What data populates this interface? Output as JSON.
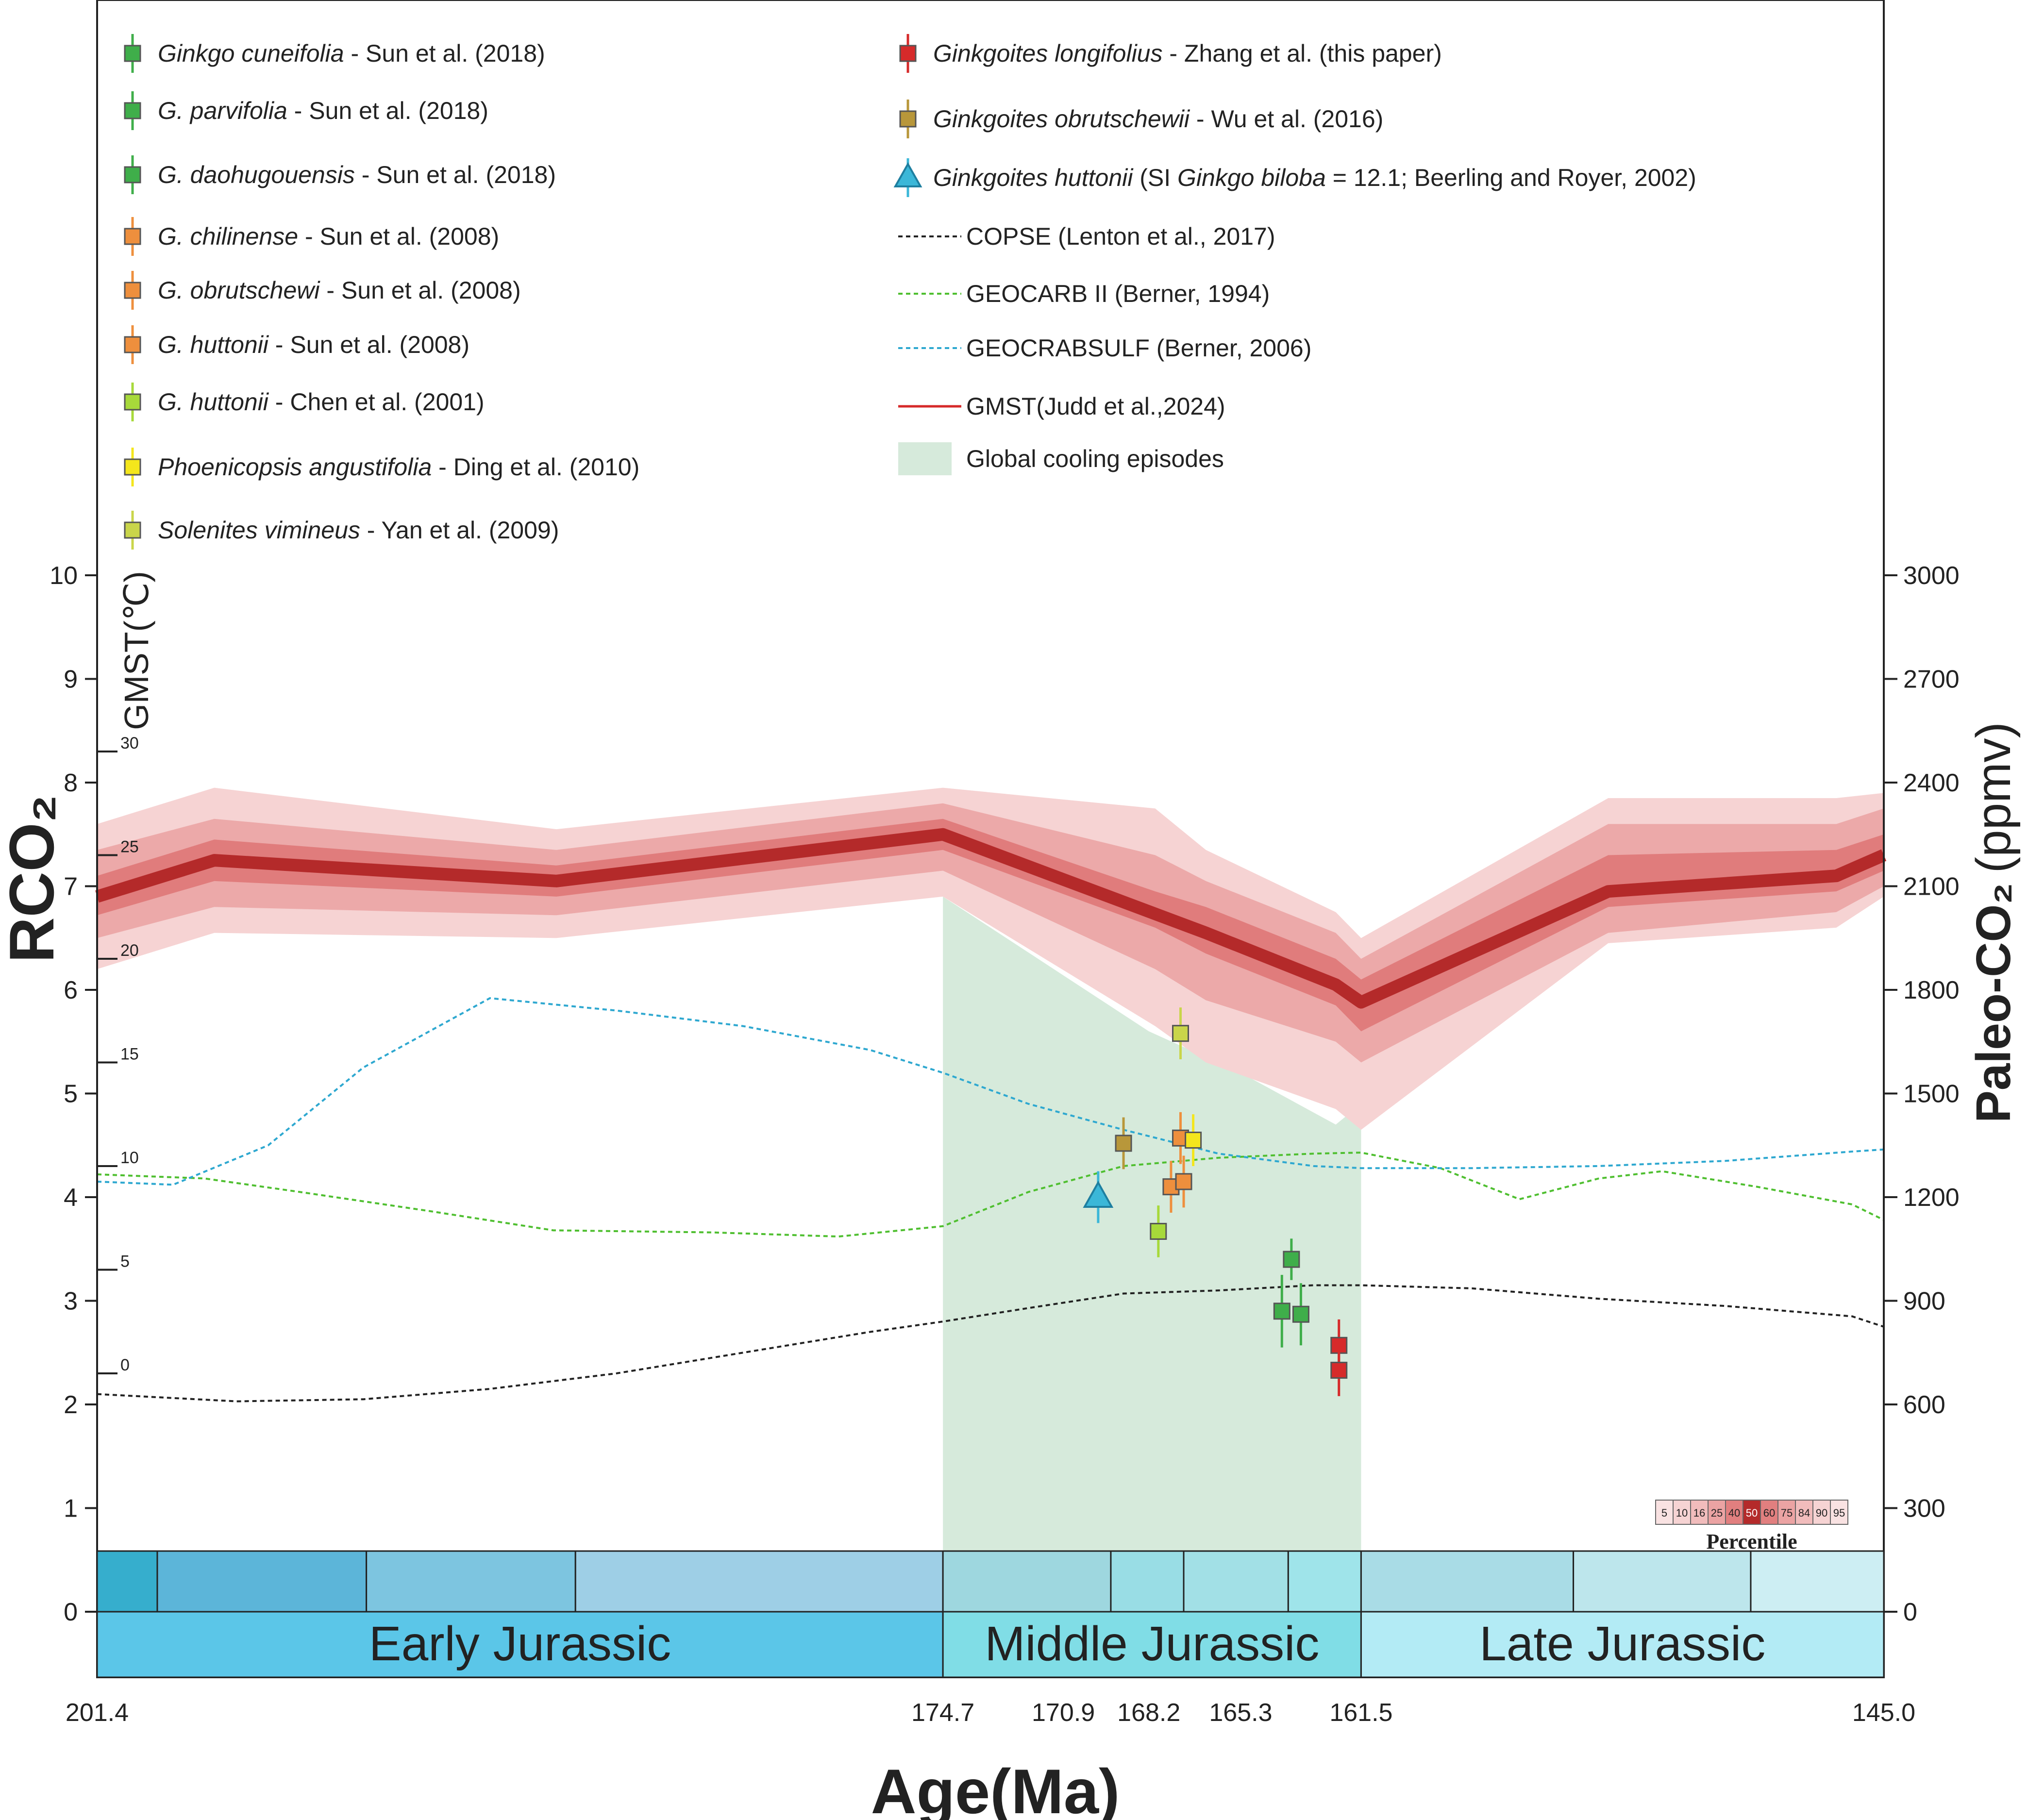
{
  "chart_data": {
    "type": "line",
    "xlabel": "Age(Ma)",
    "ylabel_left": "RCO₂",
    "ylabel_right": "Paleo-CO₂ (ppmv)",
    "ylabel_right_bold": "Paleo-CO₂",
    "ylabel_right_unit": "(ppmv)",
    "ylabel_gmst": "GMST(℃)",
    "xlim": [
      201.4,
      145.0
    ],
    "ylim_left": [
      0,
      10
    ],
    "ylim_right": [
      0,
      3000
    ],
    "x_ticks": [
      "201.4",
      "174.7",
      "170.9",
      "168.2",
      "165.3",
      "161.5",
      "145.0"
    ],
    "x_tick_values": [
      201.4,
      174.7,
      170.9,
      168.2,
      165.3,
      161.5,
      145.0
    ],
    "left_ticks": [
      "0",
      "1",
      "2",
      "3",
      "4",
      "5",
      "6",
      "7",
      "8",
      "9",
      "10"
    ],
    "right_ticks": [
      "0",
      "300",
      "600",
      "900",
      "1200",
      "1500",
      "1800",
      "2100",
      "2400",
      "2700",
      "3000"
    ],
    "gmst_ticks": [
      "0",
      "5",
      "10",
      "15",
      "20",
      "25",
      "30"
    ],
    "gmst_rco2_positions": [
      2.3,
      3.3,
      4.3,
      5.3,
      6.3,
      7.3,
      8.3
    ],
    "cooling_episode": {
      "x_start": 174.7,
      "x_end": 161.5,
      "y_top_start": 6.9,
      "label": "Global cooling episodes",
      "color": "#d6eadb"
    },
    "series": [
      {
        "name": "COPSE (Lenton et al., 2017)",
        "style": "dotted",
        "color": "#222222",
        "x": [
          201.4,
          197,
          193,
          189,
          185,
          181,
          177,
          174.7,
          172,
          169,
          166,
          163,
          161.5,
          158,
          154,
          150,
          146,
          145
        ],
        "y": [
          2.1,
          2.03,
          2.05,
          2.15,
          2.3,
          2.5,
          2.7,
          2.8,
          2.93,
          3.07,
          3.1,
          3.15,
          3.15,
          3.12,
          3.02,
          2.95,
          2.85,
          2.75
        ]
      },
      {
        "name": "GEOCARB II (Berner, 1994)",
        "style": "dotted",
        "color": "#4fbf30",
        "x": [
          201.4,
          198,
          195,
          191,
          187,
          182,
          178,
          174.7,
          172,
          169,
          166,
          163,
          161.5,
          159,
          156.5,
          154,
          152,
          149,
          146,
          145
        ],
        "y": [
          4.22,
          4.18,
          4.05,
          3.87,
          3.68,
          3.66,
          3.62,
          3.72,
          4.05,
          4.3,
          4.38,
          4.42,
          4.43,
          4.28,
          3.98,
          4.18,
          4.25,
          4.1,
          3.93,
          3.78
        ]
      },
      {
        "name": "GEOCRABSULF (Berner, 2006)",
        "style": "dotted",
        "color": "#2ea8d0",
        "x": [
          201.4,
          199,
          196,
          193,
          189,
          185,
          181,
          177,
          174.7,
          172,
          169,
          166,
          163,
          161.5,
          158,
          154,
          150,
          146,
          145
        ],
        "y": [
          4.15,
          4.12,
          4.5,
          5.25,
          5.92,
          5.8,
          5.65,
          5.42,
          5.2,
          4.9,
          4.65,
          4.42,
          4.3,
          4.28,
          4.28,
          4.3,
          4.35,
          4.44,
          4.46
        ]
      },
      {
        "name": "GMST(Judd et al.,2024)",
        "style": "solid",
        "color": "#b42a2a",
        "x": [
          201.4,
          197.7,
          186.9,
          174.7,
          166.4,
          162.3,
          161.5,
          153.7,
          146.5,
          145.0
        ],
        "y": [
          6.9,
          7.25,
          7.05,
          7.5,
          6.55,
          6.05,
          5.88,
          6.95,
          7.1,
          7.3
        ]
      }
    ],
    "gmst_bands": {
      "x": [
        201.4,
        197.7,
        186.9,
        174.7,
        168.0,
        166.4,
        162.3,
        161.5,
        153.7,
        146.5,
        145.0
      ],
      "median": [
        6.9,
        7.25,
        7.05,
        7.5,
        6.8,
        6.55,
        6.05,
        5.88,
        6.95,
        7.1,
        7.3
      ],
      "p25_75_low": [
        6.72,
        7.05,
        6.9,
        7.35,
        6.6,
        6.35,
        5.85,
        5.6,
        6.8,
        6.95,
        7.15
      ],
      "p25_75_high": [
        7.1,
        7.45,
        7.2,
        7.65,
        6.95,
        6.8,
        6.3,
        6.1,
        7.3,
        7.35,
        7.5
      ],
      "p10_90_low": [
        6.5,
        6.8,
        6.72,
        7.15,
        6.2,
        5.9,
        5.5,
        5.3,
        6.55,
        6.75,
        7.0
      ],
      "p10_90_high": [
        7.35,
        7.65,
        7.35,
        7.8,
        7.3,
        7.05,
        6.55,
        6.3,
        7.6,
        7.6,
        7.75
      ],
      "p5_95_low": [
        6.2,
        6.55,
        6.5,
        6.9,
        5.65,
        5.3,
        4.85,
        4.65,
        6.45,
        6.6,
        6.9
      ],
      "p5_95_high": [
        7.6,
        7.95,
        7.55,
        7.95,
        7.75,
        7.35,
        6.75,
        6.5,
        7.85,
        7.85,
        7.9
      ]
    },
    "points": [
      {
        "series": "Ginkgoites longifolius - Zhang et al. (this paper)",
        "x": 162.2,
        "y": 2.57,
        "err": 0.25,
        "color": "#d62a2a",
        "marker": "square"
      },
      {
        "series": "Ginkgoites longifolius - Zhang et al. (this paper)",
        "x": 162.2,
        "y": 2.33,
        "err": 0.25,
        "color": "#d62a2a",
        "marker": "square"
      },
      {
        "series": "Ginkgoites obrutschewii - Wu et al. (2016)",
        "x": 169.0,
        "y": 4.52,
        "err": 0.25,
        "color": "#b8973a",
        "marker": "square"
      },
      {
        "series": "Ginkgoites huttonii - Beerling and Royer (2002)",
        "x": 169.8,
        "y": 4.0,
        "err": 0.25,
        "color": "#3bb7d8",
        "marker": "triangle"
      },
      {
        "series": "G. daohugouensis - Sun et al. (2018)",
        "x": 163.7,
        "y": 3.4,
        "err": 0.2,
        "color": "#3fae4a",
        "marker": "square"
      },
      {
        "series": "G. parvifolia - Sun et al. (2018)",
        "x": 164.0,
        "y": 2.9,
        "err": 0.35,
        "color": "#3fae4a",
        "marker": "square"
      },
      {
        "series": "Ginkgo cuneifolia - Sun et al. (2018)",
        "x": 163.4,
        "y": 2.87,
        "err": 0.3,
        "color": "#3fae4a",
        "marker": "square"
      },
      {
        "series": "G. chilinense - Sun et al. (2008)",
        "x": 167.5,
        "y": 4.1,
        "err": 0.25,
        "color": "#ee8f3d",
        "marker": "square"
      },
      {
        "series": "G. obrutschewi - Sun et al. (2008)",
        "x": 167.1,
        "y": 4.15,
        "err": 0.25,
        "color": "#ee8f3d",
        "marker": "square"
      },
      {
        "series": "G. huttonii - Sun et al. (2008)",
        "x": 167.2,
        "y": 4.57,
        "err": 0.25,
        "color": "#ee8f3d",
        "marker": "square"
      },
      {
        "series": "G. huttonii - Chen et al. (2001)",
        "x": 167.9,
        "y": 3.67,
        "err": 0.25,
        "color": "#a7d93a",
        "marker": "square"
      },
      {
        "series": "Phoenicopsis angustifolia - Ding et al. (2010)",
        "x": 166.8,
        "y": 4.55,
        "err": 0.25,
        "color": "#f4e61c",
        "marker": "square"
      },
      {
        "series": "Solenites vimineus - Yan et al. (2009)",
        "x": 167.2,
        "y": 5.58,
        "err": 0.25,
        "color": "#c9d54a",
        "marker": "square"
      }
    ],
    "epochs": [
      {
        "label": "Early Jurassic",
        "x_start": 201.4,
        "x_end": 174.7,
        "color": "#5bc6e8"
      },
      {
        "label": "Middle Jurassic",
        "x_start": 174.7,
        "x_end": 161.5,
        "color": "#80dde6"
      },
      {
        "label": "Late Jurassic",
        "x_start": 161.5,
        "x_end": 145.0,
        "color": "#b3ebf5"
      }
    ],
    "stages": [
      {
        "x_start": 201.4,
        "x_end": 199.5,
        "color": "#36aecd"
      },
      {
        "x_start": 199.5,
        "x_end": 192.9,
        "color": "#5cb5d9"
      },
      {
        "x_start": 192.9,
        "x_end": 186.3,
        "color": "#7dc5e0"
      },
      {
        "x_start": 186.3,
        "x_end": 174.7,
        "color": "#9ecfe6"
      },
      {
        "x_start": 174.7,
        "x_end": 169.4,
        "color": "#9ed7df"
      },
      {
        "x_start": 169.4,
        "x_end": 167.1,
        "color": "#99dde5"
      },
      {
        "x_start": 167.1,
        "x_end": 163.8,
        "color": "#a2e0e6"
      },
      {
        "x_start": 163.8,
        "x_end": 161.5,
        "color": "#9fe4ea"
      },
      {
        "x_start": 161.5,
        "x_end": 154.8,
        "color": "#a9dce6"
      },
      {
        "x_start": 154.8,
        "x_end": 149.2,
        "color": "#bde6ec"
      },
      {
        "x_start": 149.2,
        "x_end": 145.0,
        "color": "#cdeef3"
      }
    ],
    "legend_left": [
      {
        "italic": "Ginkgo cuneifolia",
        "rest": " - Sun et al. (2018)",
        "color": "#3fae4a",
        "marker": "square"
      },
      {
        "italic": "G. parvifolia",
        "rest": " - Sun et al. (2018)",
        "color": "#3fae4a",
        "marker": "square"
      },
      {
        "italic": "G. daohugouensis",
        "rest": " - Sun et al. (2018)",
        "color": "#3fae4a",
        "marker": "square"
      },
      {
        "italic": "G. chilinense",
        "rest": " - Sun et al. (2008)",
        "color": "#ee8f3d",
        "marker": "square"
      },
      {
        "italic": "G. obrutschewi",
        "rest": " - Sun et al. (2008)",
        "color": "#ee8f3d",
        "marker": "square"
      },
      {
        "italic": "G. huttonii",
        "rest": " - Sun et al. (2008)",
        "color": "#ee8f3d",
        "marker": "square"
      },
      {
        "italic": "G. huttonii",
        "rest": " - Chen et al. (2001)",
        "color": "#a7d93a",
        "marker": "square"
      },
      {
        "italic": "Phoenicopsis angustifolia",
        "rest": " - Ding et al. (2010)",
        "color": "#f4e61c",
        "marker": "square"
      },
      {
        "italic": "Solenites vimineus",
        "rest": " - Yan et al. (2009)",
        "color": "#c9d54a",
        "marker": "square"
      }
    ],
    "legend_right": [
      {
        "italic": "Ginkgoites longifolius",
        "rest": " - Zhang et al. (this paper)",
        "color": "#d62a2a",
        "marker": "square"
      },
      {
        "italic": "Ginkgoites obrutschewii",
        "rest": " - Wu et al. (2016)",
        "color": "#b8973a",
        "marker": "square"
      },
      {
        "italic": "Ginkgoites huttonii",
        "rest_a": " (SI ",
        "italic_b": "Ginkgo biloba",
        "rest_b": " = 12.1; Beerling and Royer, 2002)",
        "color": "#3bb7d8",
        "marker": "triangle"
      },
      {
        "text": "COPSE (Lenton et al., 2017)",
        "color": "#222222",
        "marker": "dotted"
      },
      {
        "text": "GEOCARB II (Berner, 1994)",
        "color": "#4fbf30",
        "marker": "dotted"
      },
      {
        "text": "GEOCRABSULF (Berner, 2006)",
        "color": "#2ea8d0",
        "marker": "dotted"
      },
      {
        "text": "GMST(Judd et al.,2024)",
        "color": "#d62a2a",
        "marker": "line"
      },
      {
        "text": "Global cooling episodes",
        "color": "#d6eadb",
        "marker": "box"
      }
    ],
    "percentile": {
      "title": "Percentile",
      "labels": [
        "5",
        "10",
        "16",
        "25",
        "40",
        "50",
        "60",
        "75",
        "84",
        "90",
        "95"
      ],
      "colors": [
        "#f9e2e2",
        "#f6d3d3",
        "#f1bcbc",
        "#eba3a3",
        "#e17f7f",
        "#b42a2a",
        "#e17f7f",
        "#eba3a3",
        "#f1bcbc",
        "#f6d3d3",
        "#f9e2e2"
      ]
    }
  }
}
